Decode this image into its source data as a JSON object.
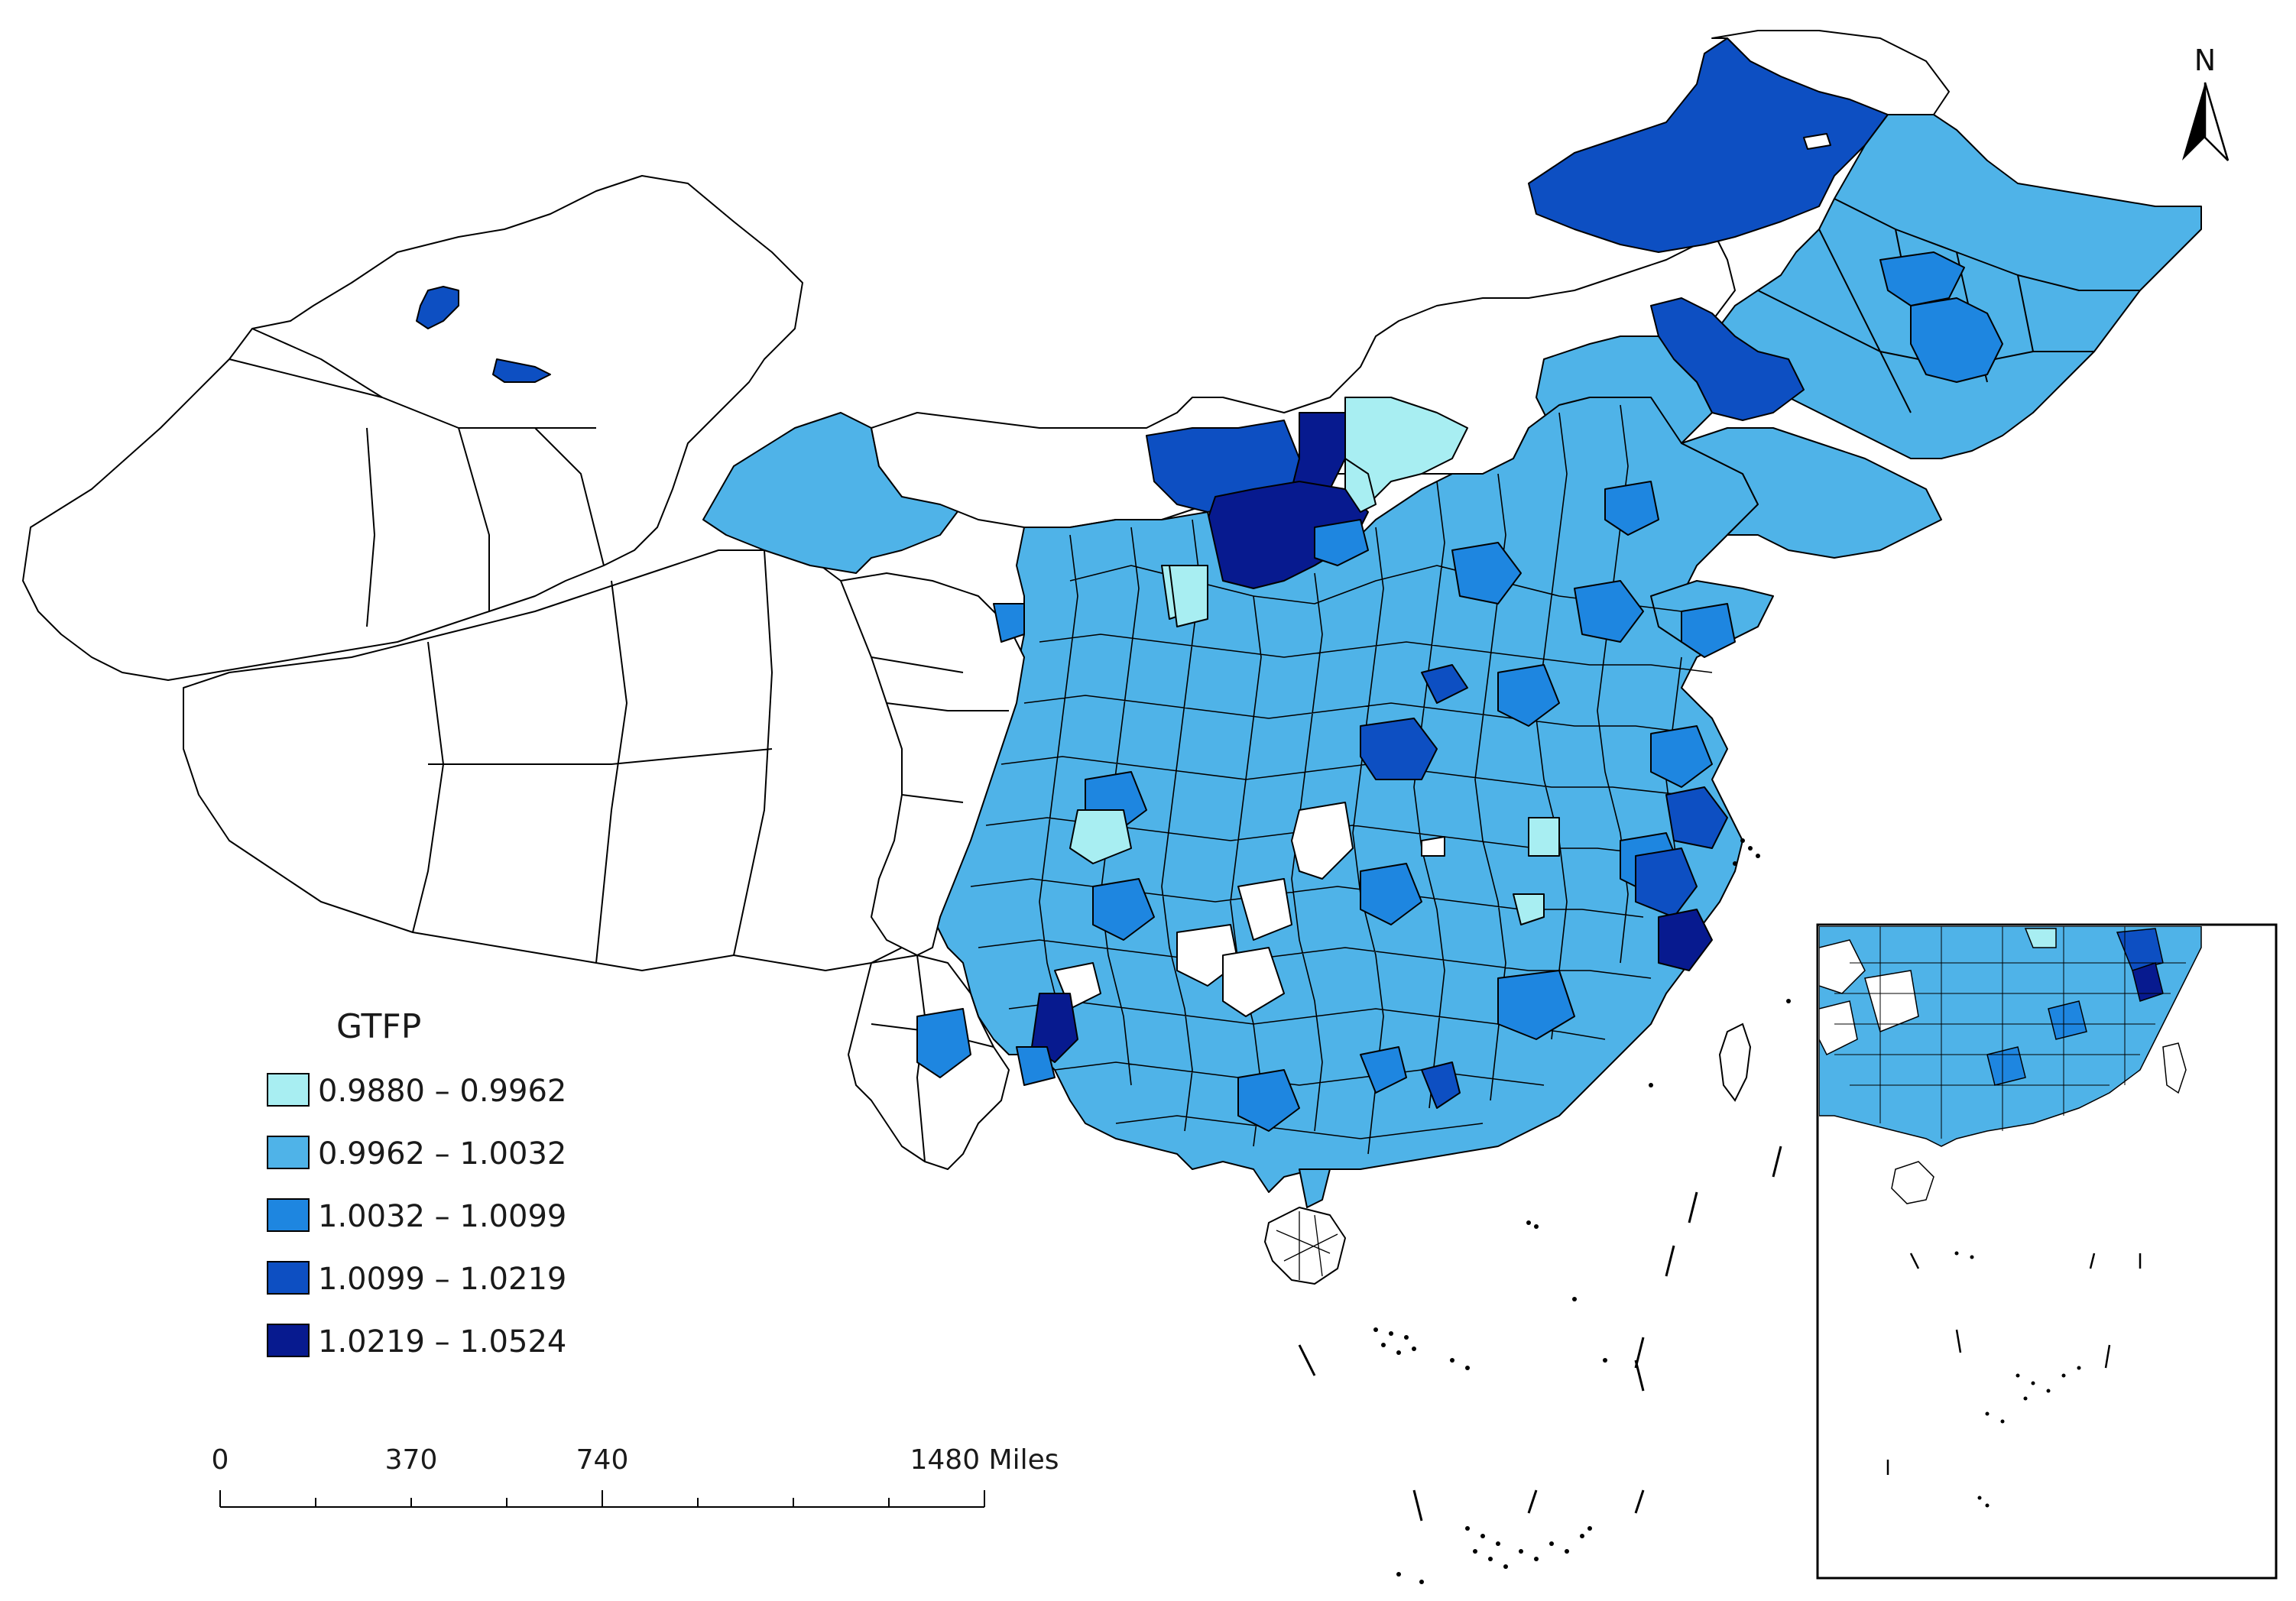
{
  "legend": {
    "title": "GTFP",
    "classes": [
      {
        "range": "0.9880 – 0.9962",
        "color": "#a8eef2"
      },
      {
        "range": "0.9962 – 1.0032",
        "color": "#4fb3e8"
      },
      {
        "range": "1.0032 – 1.0099",
        "color": "#1e86e0"
      },
      {
        "range": "1.0099 – 1.0219",
        "color": "#0d4fc2"
      },
      {
        "range": "1.0219 – 1.0524",
        "color": "#071a8f"
      }
    ]
  },
  "scale_bar": {
    "ticks": [
      "0",
      "370",
      "740",
      "1480 Miles"
    ]
  },
  "north_arrow": {
    "label": "N"
  },
  "colors": {
    "unclassified": "#ffffff",
    "border": "#000000"
  }
}
